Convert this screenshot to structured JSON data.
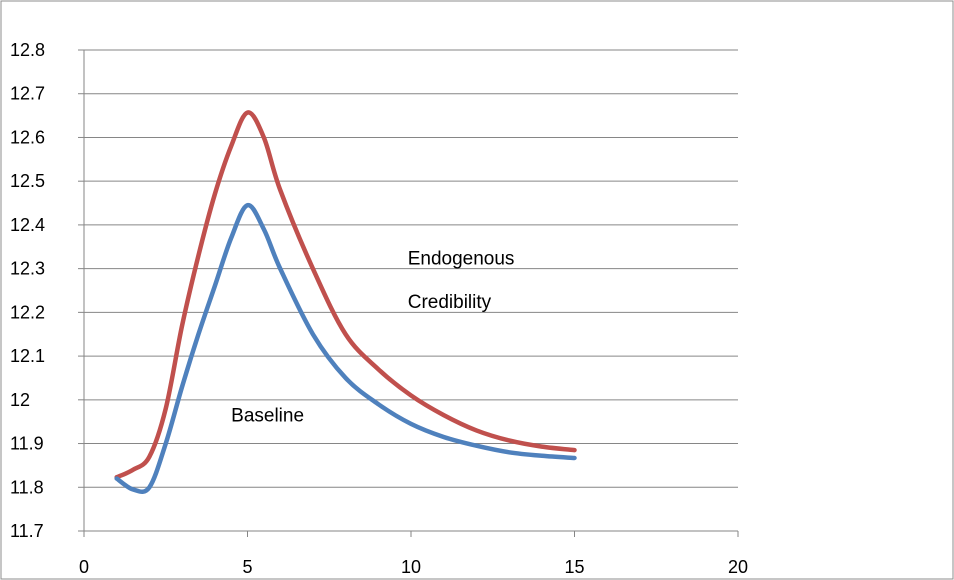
{
  "chart_data": {
    "type": "line",
    "title": "",
    "xlabel": "",
    "ylabel": "",
    "xlim": [
      0,
      20
    ],
    "ylim": [
      11.7,
      12.8
    ],
    "xticks": [
      "0",
      "5",
      "10",
      "15",
      "20"
    ],
    "yticks": [
      "11.7",
      "11.8",
      "11.9",
      "12",
      "12.1",
      "12.2",
      "12.3",
      "12.4",
      "12.5",
      "12.6",
      "12.7",
      "12.8"
    ],
    "grid": "horizontal",
    "legend": "none",
    "series": [
      {
        "name": "Baseline",
        "color": "#4f81bd",
        "x": [
          1,
          1.5,
          2,
          2.5,
          3,
          3.5,
          4,
          4.5,
          5,
          5.5,
          6,
          7,
          8,
          9,
          10,
          11,
          12,
          13,
          14,
          15
        ],
        "y": [
          11.82,
          11.795,
          11.8,
          11.9,
          12.03,
          12.15,
          12.26,
          12.37,
          12.445,
          12.39,
          12.3,
          12.15,
          12.05,
          11.99,
          11.945,
          11.915,
          11.895,
          11.88,
          11.872,
          11.867
        ]
      },
      {
        "name": "Endogenous Credibility",
        "color": "#c0504d",
        "x": [
          1,
          1.5,
          2,
          2.5,
          3,
          3.5,
          4,
          4.5,
          5,
          5.5,
          6,
          7,
          8,
          9,
          10,
          11,
          12,
          13,
          14,
          15
        ],
        "y": [
          11.823,
          11.84,
          11.87,
          11.98,
          12.17,
          12.33,
          12.47,
          12.58,
          12.657,
          12.6,
          12.48,
          12.3,
          12.15,
          12.07,
          12.01,
          11.965,
          11.93,
          11.907,
          11.893,
          11.885
        ]
      }
    ],
    "annotations": [
      {
        "text": "Endogenous",
        "x": 9.9,
        "y": 12.31
      },
      {
        "text": "Credibility",
        "x": 9.9,
        "y": 12.21
      },
      {
        "text": "Baseline",
        "x": 4.5,
        "y": 11.95
      }
    ]
  }
}
